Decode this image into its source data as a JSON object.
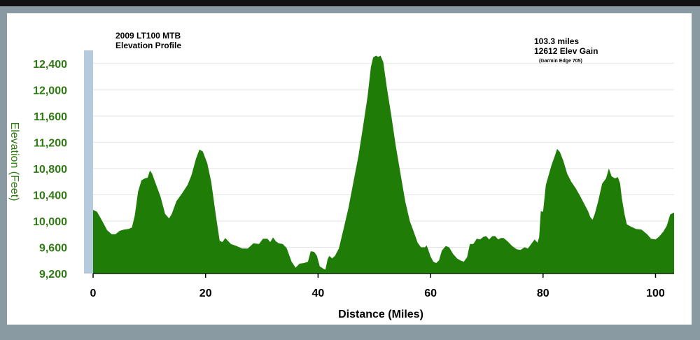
{
  "colors": {
    "fill": "#1f7d07",
    "axis_text": "#2f7a12",
    "band": "#b5cadd",
    "grid": "#e4e4e4"
  },
  "annotations": {
    "title_line1": "2009 LT100 MTB",
    "title_line2": "Elevation Profile",
    "distance": "103.3 miles",
    "gain": "12612 Elev Gain",
    "device": "(Garmin Edge 705)"
  },
  "chart_data": {
    "type": "area",
    "xlabel": "Distance (Miles)",
    "ylabel": "Elevation (Feet)",
    "xlim": [
      0,
      103.3
    ],
    "ylim": [
      9200,
      12600
    ],
    "x_ticks": [
      0,
      20,
      40,
      60,
      80,
      100
    ],
    "x_tick_labels": [
      "0",
      "20",
      "40",
      "60",
      "80",
      "100"
    ],
    "y_ticks": [
      9200,
      9600,
      10000,
      10400,
      10800,
      11200,
      11600,
      12000,
      12400
    ],
    "y_tick_labels": [
      "9,200",
      "9,600",
      "10,000",
      "10,400",
      "10,800",
      "11,200",
      "11,600",
      "12,000",
      "12,400"
    ],
    "grid": true,
    "series": [
      {
        "points": [
          [
            0,
            10170
          ],
          [
            0.7,
            10140
          ],
          [
            1.5,
            10020
          ],
          [
            2.5,
            9860
          ],
          [
            3.3,
            9800
          ],
          [
            4,
            9800
          ],
          [
            4.7,
            9850
          ],
          [
            5.5,
            9870
          ],
          [
            6.3,
            9880
          ],
          [
            6.9,
            9900
          ],
          [
            7.4,
            10080
          ],
          [
            8,
            10450
          ],
          [
            8.6,
            10620
          ],
          [
            9.2,
            10650
          ],
          [
            9.7,
            10660
          ],
          [
            10.1,
            10770
          ],
          [
            10.5,
            10720
          ],
          [
            11,
            10600
          ],
          [
            12,
            10370
          ],
          [
            12.8,
            10110
          ],
          [
            13.5,
            10040
          ],
          [
            14,
            10110
          ],
          [
            14.8,
            10300
          ],
          [
            15.8,
            10420
          ],
          [
            16.8,
            10550
          ],
          [
            17.5,
            10700
          ],
          [
            18.3,
            10950
          ],
          [
            18.9,
            11090
          ],
          [
            19.5,
            11060
          ],
          [
            20.3,
            10880
          ],
          [
            21,
            10600
          ],
          [
            21.8,
            10100
          ],
          [
            22.5,
            9700
          ],
          [
            23,
            9680
          ],
          [
            23.5,
            9740
          ],
          [
            24.5,
            9650
          ],
          [
            25.5,
            9620
          ],
          [
            26.5,
            9580
          ],
          [
            27.5,
            9580
          ],
          [
            28.5,
            9660
          ],
          [
            29.5,
            9650
          ],
          [
            30.2,
            9730
          ],
          [
            31,
            9730
          ],
          [
            31.5,
            9680
          ],
          [
            32,
            9750
          ],
          [
            32.5,
            9690
          ],
          [
            33,
            9660
          ],
          [
            33.7,
            9650
          ],
          [
            34.4,
            9590
          ],
          [
            35.3,
            9380
          ],
          [
            36,
            9290
          ],
          [
            36.7,
            9350
          ],
          [
            37.5,
            9360
          ],
          [
            38.2,
            9380
          ],
          [
            38.7,
            9540
          ],
          [
            39.3,
            9530
          ],
          [
            39.8,
            9470
          ],
          [
            40.3,
            9310
          ],
          [
            41,
            9270
          ],
          [
            41.3,
            9260
          ],
          [
            41.7,
            9420
          ],
          [
            42,
            9470
          ],
          [
            42.5,
            9430
          ],
          [
            43,
            9470
          ],
          [
            43.7,
            9580
          ],
          [
            44.5,
            9870
          ],
          [
            45.4,
            10200
          ],
          [
            46.3,
            10600
          ],
          [
            47.2,
            11000
          ],
          [
            48.1,
            11500
          ],
          [
            48.8,
            11900
          ],
          [
            49.4,
            12350
          ],
          [
            49.8,
            12490
          ],
          [
            50.3,
            12520
          ],
          [
            50.7,
            12500
          ],
          [
            51.1,
            12520
          ],
          [
            51.6,
            12420
          ],
          [
            52.2,
            12050
          ],
          [
            53,
            11620
          ],
          [
            53.8,
            11150
          ],
          [
            54.6,
            10750
          ],
          [
            55.5,
            10300
          ],
          [
            56.3,
            10000
          ],
          [
            57,
            9840
          ],
          [
            57.7,
            9670
          ],
          [
            58.3,
            9600
          ],
          [
            59,
            9600
          ],
          [
            59.3,
            9630
          ],
          [
            59.6,
            9560
          ],
          [
            60,
            9460
          ],
          [
            60.5,
            9380
          ],
          [
            61,
            9360
          ],
          [
            61.5,
            9400
          ],
          [
            62,
            9550
          ],
          [
            62.7,
            9620
          ],
          [
            63.3,
            9600
          ],
          [
            64,
            9500
          ],
          [
            64.7,
            9430
          ],
          [
            65.3,
            9400
          ],
          [
            65.9,
            9380
          ],
          [
            66.5,
            9450
          ],
          [
            67,
            9650
          ],
          [
            67.6,
            9650
          ],
          [
            68.2,
            9730
          ],
          [
            68.8,
            9720
          ],
          [
            69.4,
            9760
          ],
          [
            69.9,
            9770
          ],
          [
            70.4,
            9720
          ],
          [
            71,
            9770
          ],
          [
            71.5,
            9770
          ],
          [
            72,
            9720
          ],
          [
            72.5,
            9740
          ],
          [
            73,
            9740
          ],
          [
            73.7,
            9690
          ],
          [
            74.5,
            9620
          ],
          [
            75.3,
            9570
          ],
          [
            76,
            9560
          ],
          [
            76.7,
            9600
          ],
          [
            77.3,
            9580
          ],
          [
            77.9,
            9650
          ],
          [
            78.5,
            9720
          ],
          [
            79,
            9670
          ],
          [
            79.3,
            9750
          ],
          [
            79.6,
            10150
          ],
          [
            80,
            10140
          ],
          [
            80.5,
            10550
          ],
          [
            81,
            10700
          ],
          [
            81.5,
            10850
          ],
          [
            82,
            10970
          ],
          [
            82.5,
            11100
          ],
          [
            83,
            11050
          ],
          [
            83.6,
            10920
          ],
          [
            84.3,
            10720
          ],
          [
            85,
            10600
          ],
          [
            85.8,
            10500
          ],
          [
            86.6,
            10380
          ],
          [
            87.4,
            10250
          ],
          [
            88,
            10150
          ],
          [
            88.4,
            10060
          ],
          [
            88.8,
            10020
          ],
          [
            89.2,
            10110
          ],
          [
            89.8,
            10300
          ],
          [
            90.5,
            10570
          ],
          [
            91.2,
            10650
          ],
          [
            91.7,
            10800
          ],
          [
            92.2,
            10680
          ],
          [
            92.8,
            10650
          ],
          [
            93.3,
            10670
          ],
          [
            93.7,
            10570
          ],
          [
            94,
            10350
          ],
          [
            94.5,
            10100
          ],
          [
            94.9,
            9950
          ],
          [
            95.5,
            9920
          ],
          [
            96.5,
            9880
          ],
          [
            97.5,
            9870
          ],
          [
            98.5,
            9800
          ],
          [
            99.2,
            9730
          ],
          [
            100,
            9720
          ],
          [
            100.6,
            9760
          ],
          [
            101.4,
            9840
          ],
          [
            102,
            9930
          ],
          [
            102.6,
            10100
          ],
          [
            103.3,
            10130
          ]
        ]
      }
    ]
  }
}
